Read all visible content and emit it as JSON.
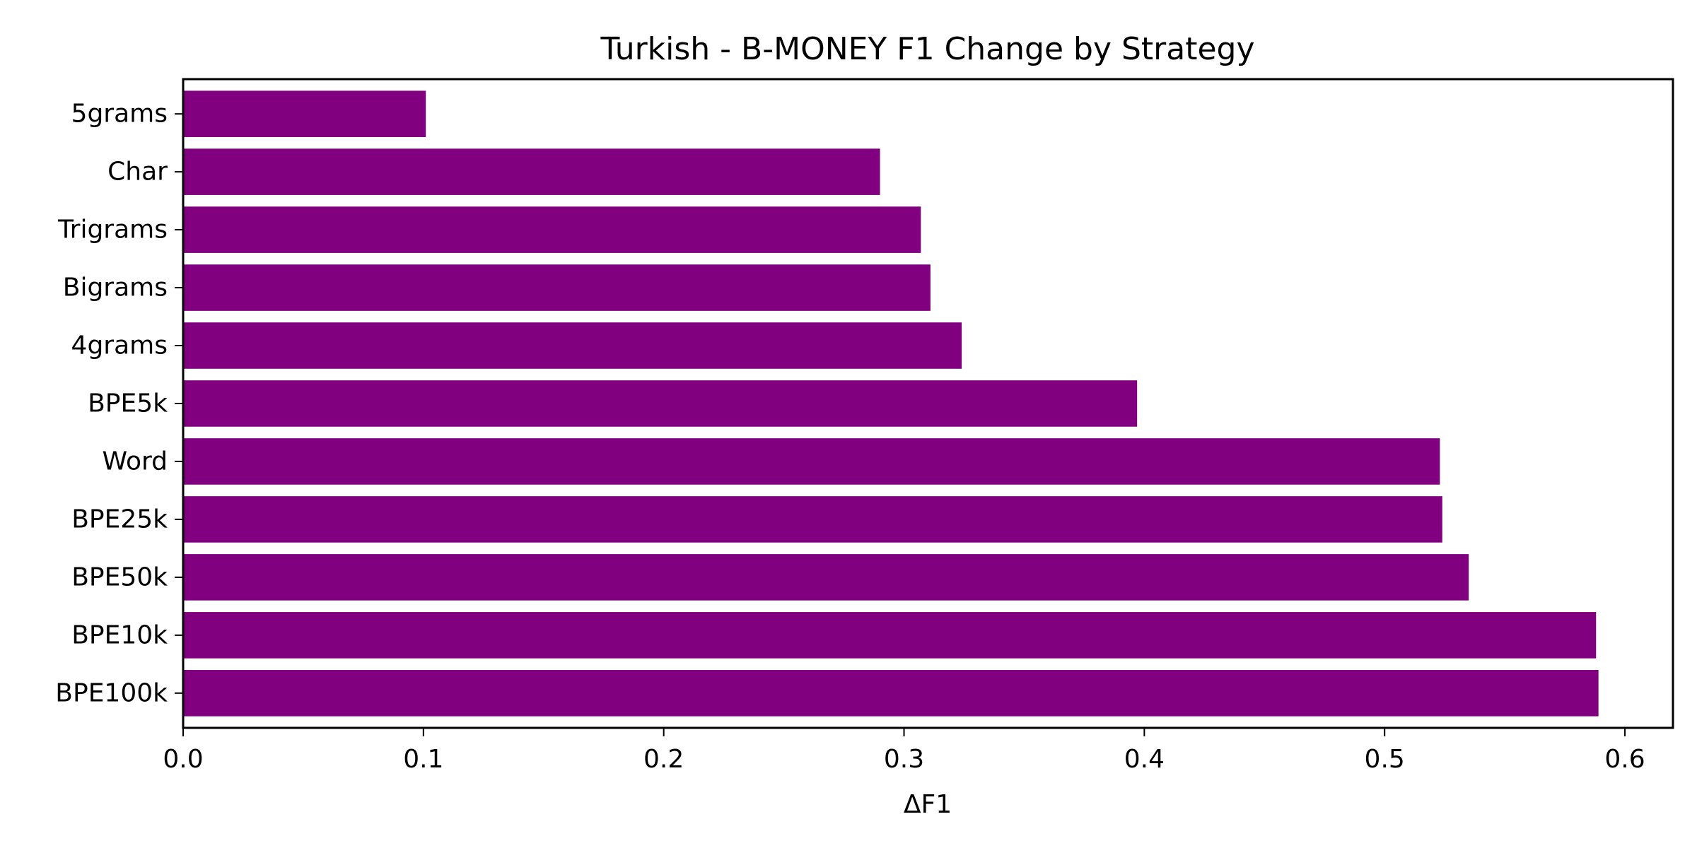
{
  "chart_data": {
    "type": "bar",
    "orientation": "horizontal",
    "title": "Turkish - B-MONEY F1 Change by Strategy",
    "xlabel": "ΔF1",
    "ylabel": "",
    "categories": [
      "5grams",
      "Char",
      "Trigrams",
      "Bigrams",
      "4grams",
      "BPE5k",
      "Word",
      "BPE25k",
      "BPE50k",
      "BPE10k",
      "BPE100k"
    ],
    "values": [
      0.101,
      0.29,
      0.307,
      0.311,
      0.324,
      0.397,
      0.523,
      0.524,
      0.535,
      0.588,
      0.589
    ],
    "xlim": [
      0,
      0.62
    ],
    "xticks": [
      "0.0",
      "0.1",
      "0.2",
      "0.3",
      "0.4",
      "0.5",
      "0.6"
    ],
    "bar_color": "#800080",
    "grid": false,
    "legend": "none"
  }
}
